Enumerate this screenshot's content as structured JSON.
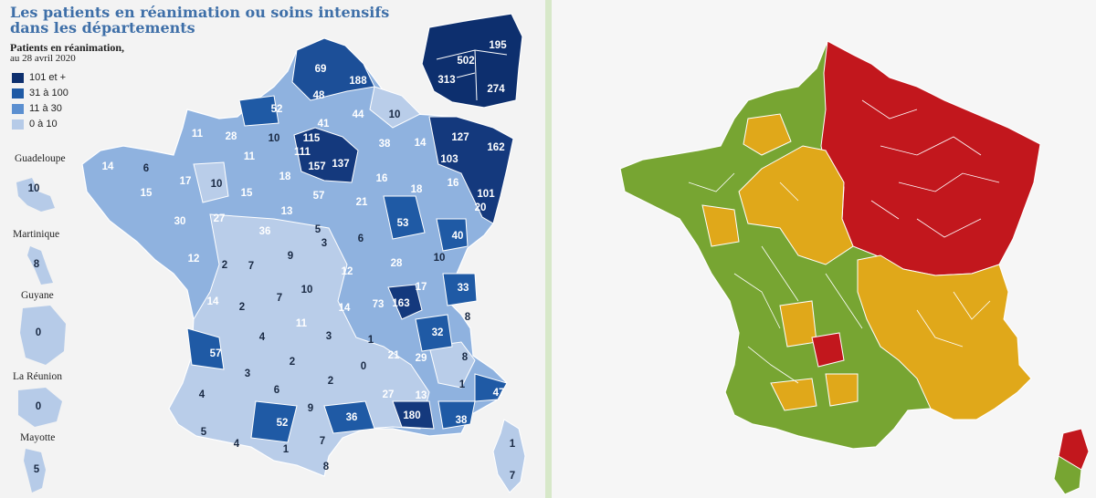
{
  "left_map": {
    "title_line1": "Les patients en réanimation ou soins intensifs",
    "title_line2": "dans les départements",
    "subtitle": "Patients en réanimation,",
    "date": "au 28 avril 2020",
    "legend": [
      {
        "label": "101 et +",
        "color": "#0d2f6e"
      },
      {
        "label": "31 à 100",
        "color": "#1f5aa5"
      },
      {
        "label": "11 à 30",
        "color": "#5b8fd0"
      },
      {
        "label": "0 à 10",
        "color": "#b6cbe8"
      }
    ],
    "territories": [
      {
        "name": "Guadeloupe",
        "value": "10"
      },
      {
        "name": "Martinique",
        "value": "8"
      },
      {
        "name": "Guyane",
        "value": "0"
      },
      {
        "name": "La Réunion",
        "value": "0"
      },
      {
        "name": "Mayotte",
        "value": "5"
      }
    ],
    "department_values": [
      "69",
      "188",
      "48",
      "52",
      "44",
      "41",
      "10",
      "10",
      "28",
      "11",
      "115",
      "111",
      "157",
      "137",
      "38",
      "14",
      "127",
      "103",
      "162",
      "14",
      "6",
      "10",
      "17",
      "11",
      "15",
      "18",
      "57",
      "16",
      "21",
      "18",
      "16",
      "101",
      "20",
      "15",
      "30",
      "27",
      "13",
      "53",
      "36",
      "3",
      "6",
      "9",
      "12",
      "2",
      "7",
      "40",
      "12",
      "28",
      "10",
      "5",
      "11",
      "7",
      "10",
      "14",
      "17",
      "73",
      "163",
      "33",
      "14",
      "57",
      "2",
      "4",
      "3",
      "1",
      "21",
      "29",
      "32",
      "8",
      "3",
      "2",
      "0",
      "6",
      "2",
      "4",
      "9",
      "27",
      "13",
      "1",
      "47",
      "8",
      "5",
      "52",
      "4",
      "1",
      "7",
      "36",
      "180",
      "38",
      "8",
      "1",
      "7"
    ],
    "inset_values": [
      "195",
      "502",
      "313",
      "274"
    ]
  },
  "right_map": {
    "colors": {
      "red": "#c2171d",
      "orange": "#e0a81a",
      "green": "#77a532"
    }
  }
}
